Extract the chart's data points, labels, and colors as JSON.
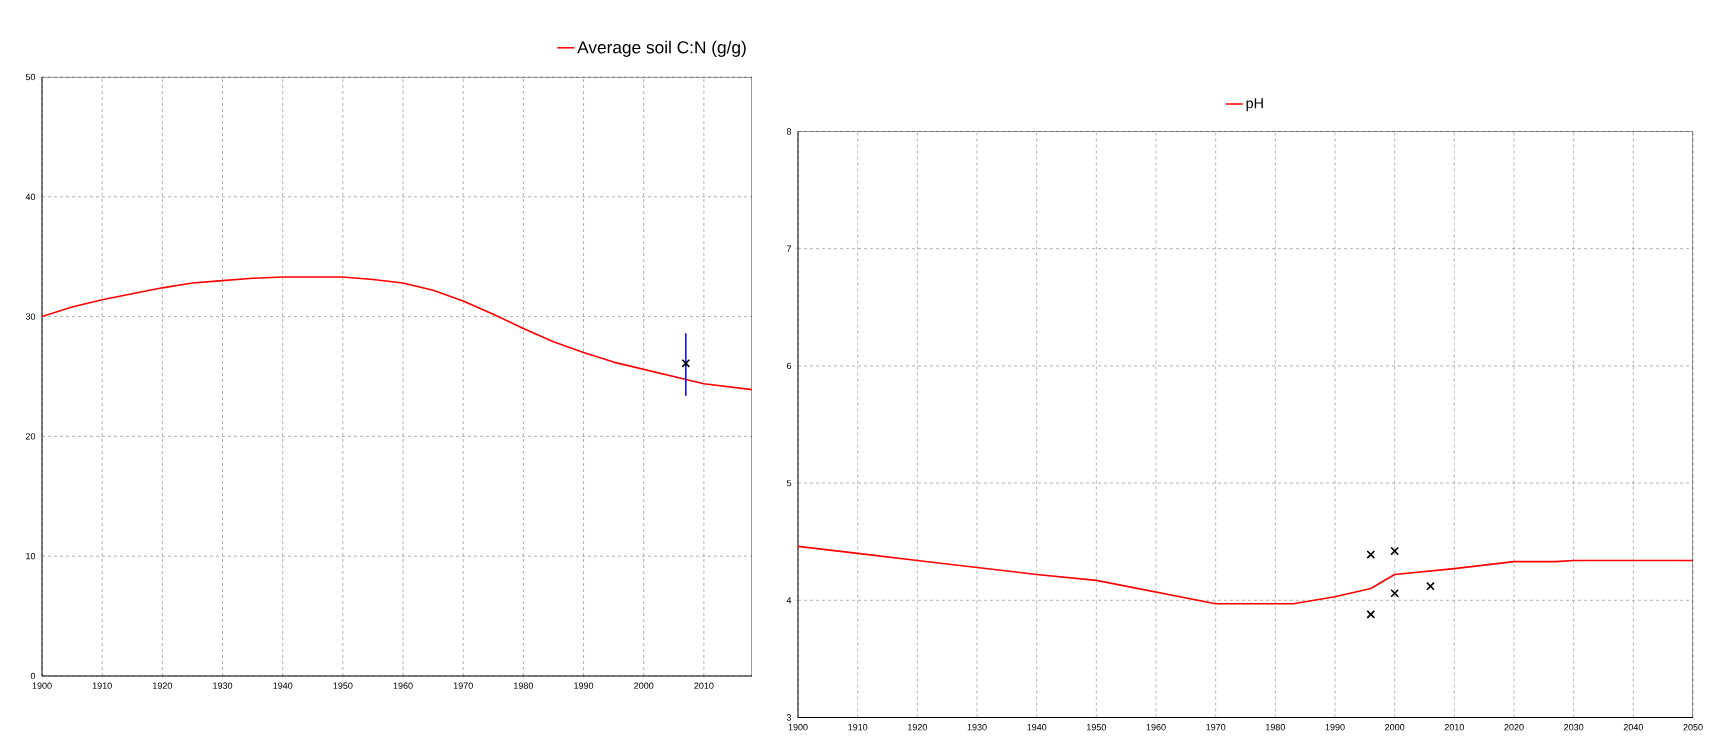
{
  "chart_data": [
    {
      "type": "line",
      "xlim": [
        1900,
        2018
      ],
      "ylim": [
        0,
        50
      ],
      "xticks": [
        1900,
        1910,
        1920,
        1930,
        1940,
        1950,
        1960,
        1970,
        1980,
        1990,
        2000,
        2010
      ],
      "yticks": [
        0,
        10,
        20,
        30,
        40,
        50
      ],
      "grid": true,
      "legend": "top right",
      "series": [
        {
          "name": "Average soil C:N (g/g)",
          "color": "#ff0000",
          "marker": "none",
          "x": [
            1900,
            1905,
            1910,
            1915,
            1920,
            1925,
            1930,
            1935,
            1940,
            1945,
            1950,
            1955,
            1960,
            1965,
            1970,
            1975,
            1980,
            1985,
            1990,
            1995,
            2000,
            2005,
            2010,
            2018
          ],
          "values": [
            30.0,
            30.8,
            31.4,
            31.9,
            32.4,
            32.8,
            33.0,
            33.2,
            33.3,
            33.3,
            33.3,
            33.1,
            32.8,
            32.2,
            31.3,
            30.2,
            29.0,
            27.9,
            27.0,
            26.2,
            25.6,
            25.0,
            24.4,
            23.9
          ]
        },
        {
          "type": "scatter",
          "color": "#000000",
          "marker": "cross",
          "x": [
            2007
          ],
          "values": [
            26.1
          ],
          "errors": [
            [
              23.4,
              28.6
            ]
          ]
        }
      ]
    },
    {
      "type": "line",
      "xlim": [
        1900,
        2050
      ],
      "ylim": [
        3,
        8
      ],
      "xticks": [
        1900,
        1910,
        1920,
        1930,
        1940,
        1950,
        1960,
        1970,
        1980,
        1990,
        2000,
        2010,
        2020,
        2030,
        2040,
        2050
      ],
      "yticks": [
        3,
        4,
        5,
        6,
        7,
        8
      ],
      "grid": true,
      "legend": "top",
      "series": [
        {
          "name": "pH",
          "color": "#ff0000",
          "marker": "none",
          "x": [
            1900,
            1910,
            1920,
            1930,
            1940,
            1950,
            1960,
            1970,
            1983,
            1990,
            1996,
            2000,
            2010,
            2020,
            2027,
            2030,
            2050
          ],
          "values": [
            4.46,
            4.4,
            4.34,
            4.28,
            4.22,
            4.17,
            4.07,
            3.97,
            3.97,
            4.03,
            4.1,
            4.22,
            4.27,
            4.33,
            4.33,
            4.34,
            4.34
          ]
        },
        {
          "type": "scatter",
          "color": "#000000",
          "marker": "cross",
          "x": [
            1996,
            2000,
            1996,
            2000,
            2006
          ],
          "values": [
            4.39,
            4.42,
            3.88,
            4.06,
            4.12
          ]
        }
      ]
    }
  ]
}
